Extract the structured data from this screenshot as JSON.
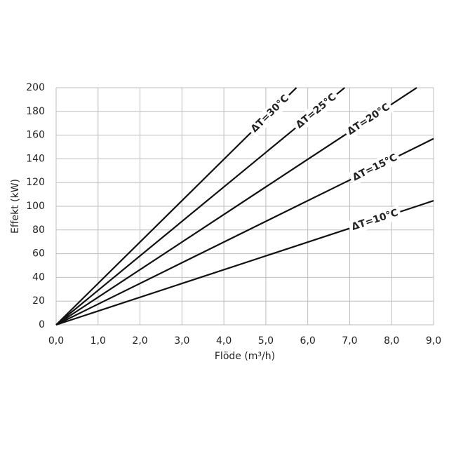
{
  "chart_data": {
    "type": "line",
    "xlabel": "Flöde (m³/h)",
    "ylabel": "Effekt (kW)",
    "x": [
      0,
      5.73,
      6.88,
      8.6,
      9.0
    ],
    "series": [
      {
        "name": "ΔT=30°C",
        "color": "#111111",
        "values": [
          0,
          200.0,
          null,
          null,
          null
        ]
      },
      {
        "name": "ΔT=25°C",
        "color": "#111111",
        "values": [
          0,
          166.6,
          200.0,
          null,
          null
        ]
      },
      {
        "name": "ΔT=20°C",
        "color": "#111111",
        "values": [
          0,
          133.3,
          160.0,
          200.0,
          null
        ]
      },
      {
        "name": "ΔT=15°C",
        "color": "#111111",
        "values": [
          0,
          100.0,
          120.0,
          150.0,
          157.0
        ]
      },
      {
        "name": "ΔT=10°C",
        "color": "#111111",
        "values": [
          0,
          66.6,
          80.0,
          100.0,
          104.7
        ]
      }
    ],
    "xlim": [
      0,
      9
    ],
    "ylim": [
      0,
      200
    ],
    "xticks": [
      {
        "value": 0,
        "label": "0,0"
      },
      {
        "value": 1,
        "label": "1,0"
      },
      {
        "value": 2,
        "label": "2,0"
      },
      {
        "value": 3,
        "label": "3,0"
      },
      {
        "value": 4,
        "label": "4,0"
      },
      {
        "value": 5,
        "label": "5,0"
      },
      {
        "value": 6,
        "label": "6,0"
      },
      {
        "value": 7,
        "label": "7,0"
      },
      {
        "value": 8,
        "label": "8,0"
      },
      {
        "value": 9,
        "label": "9,0"
      }
    ],
    "yticks": [
      0,
      20,
      40,
      60,
      80,
      100,
      120,
      140,
      160,
      180,
      200
    ],
    "grid": true
  }
}
